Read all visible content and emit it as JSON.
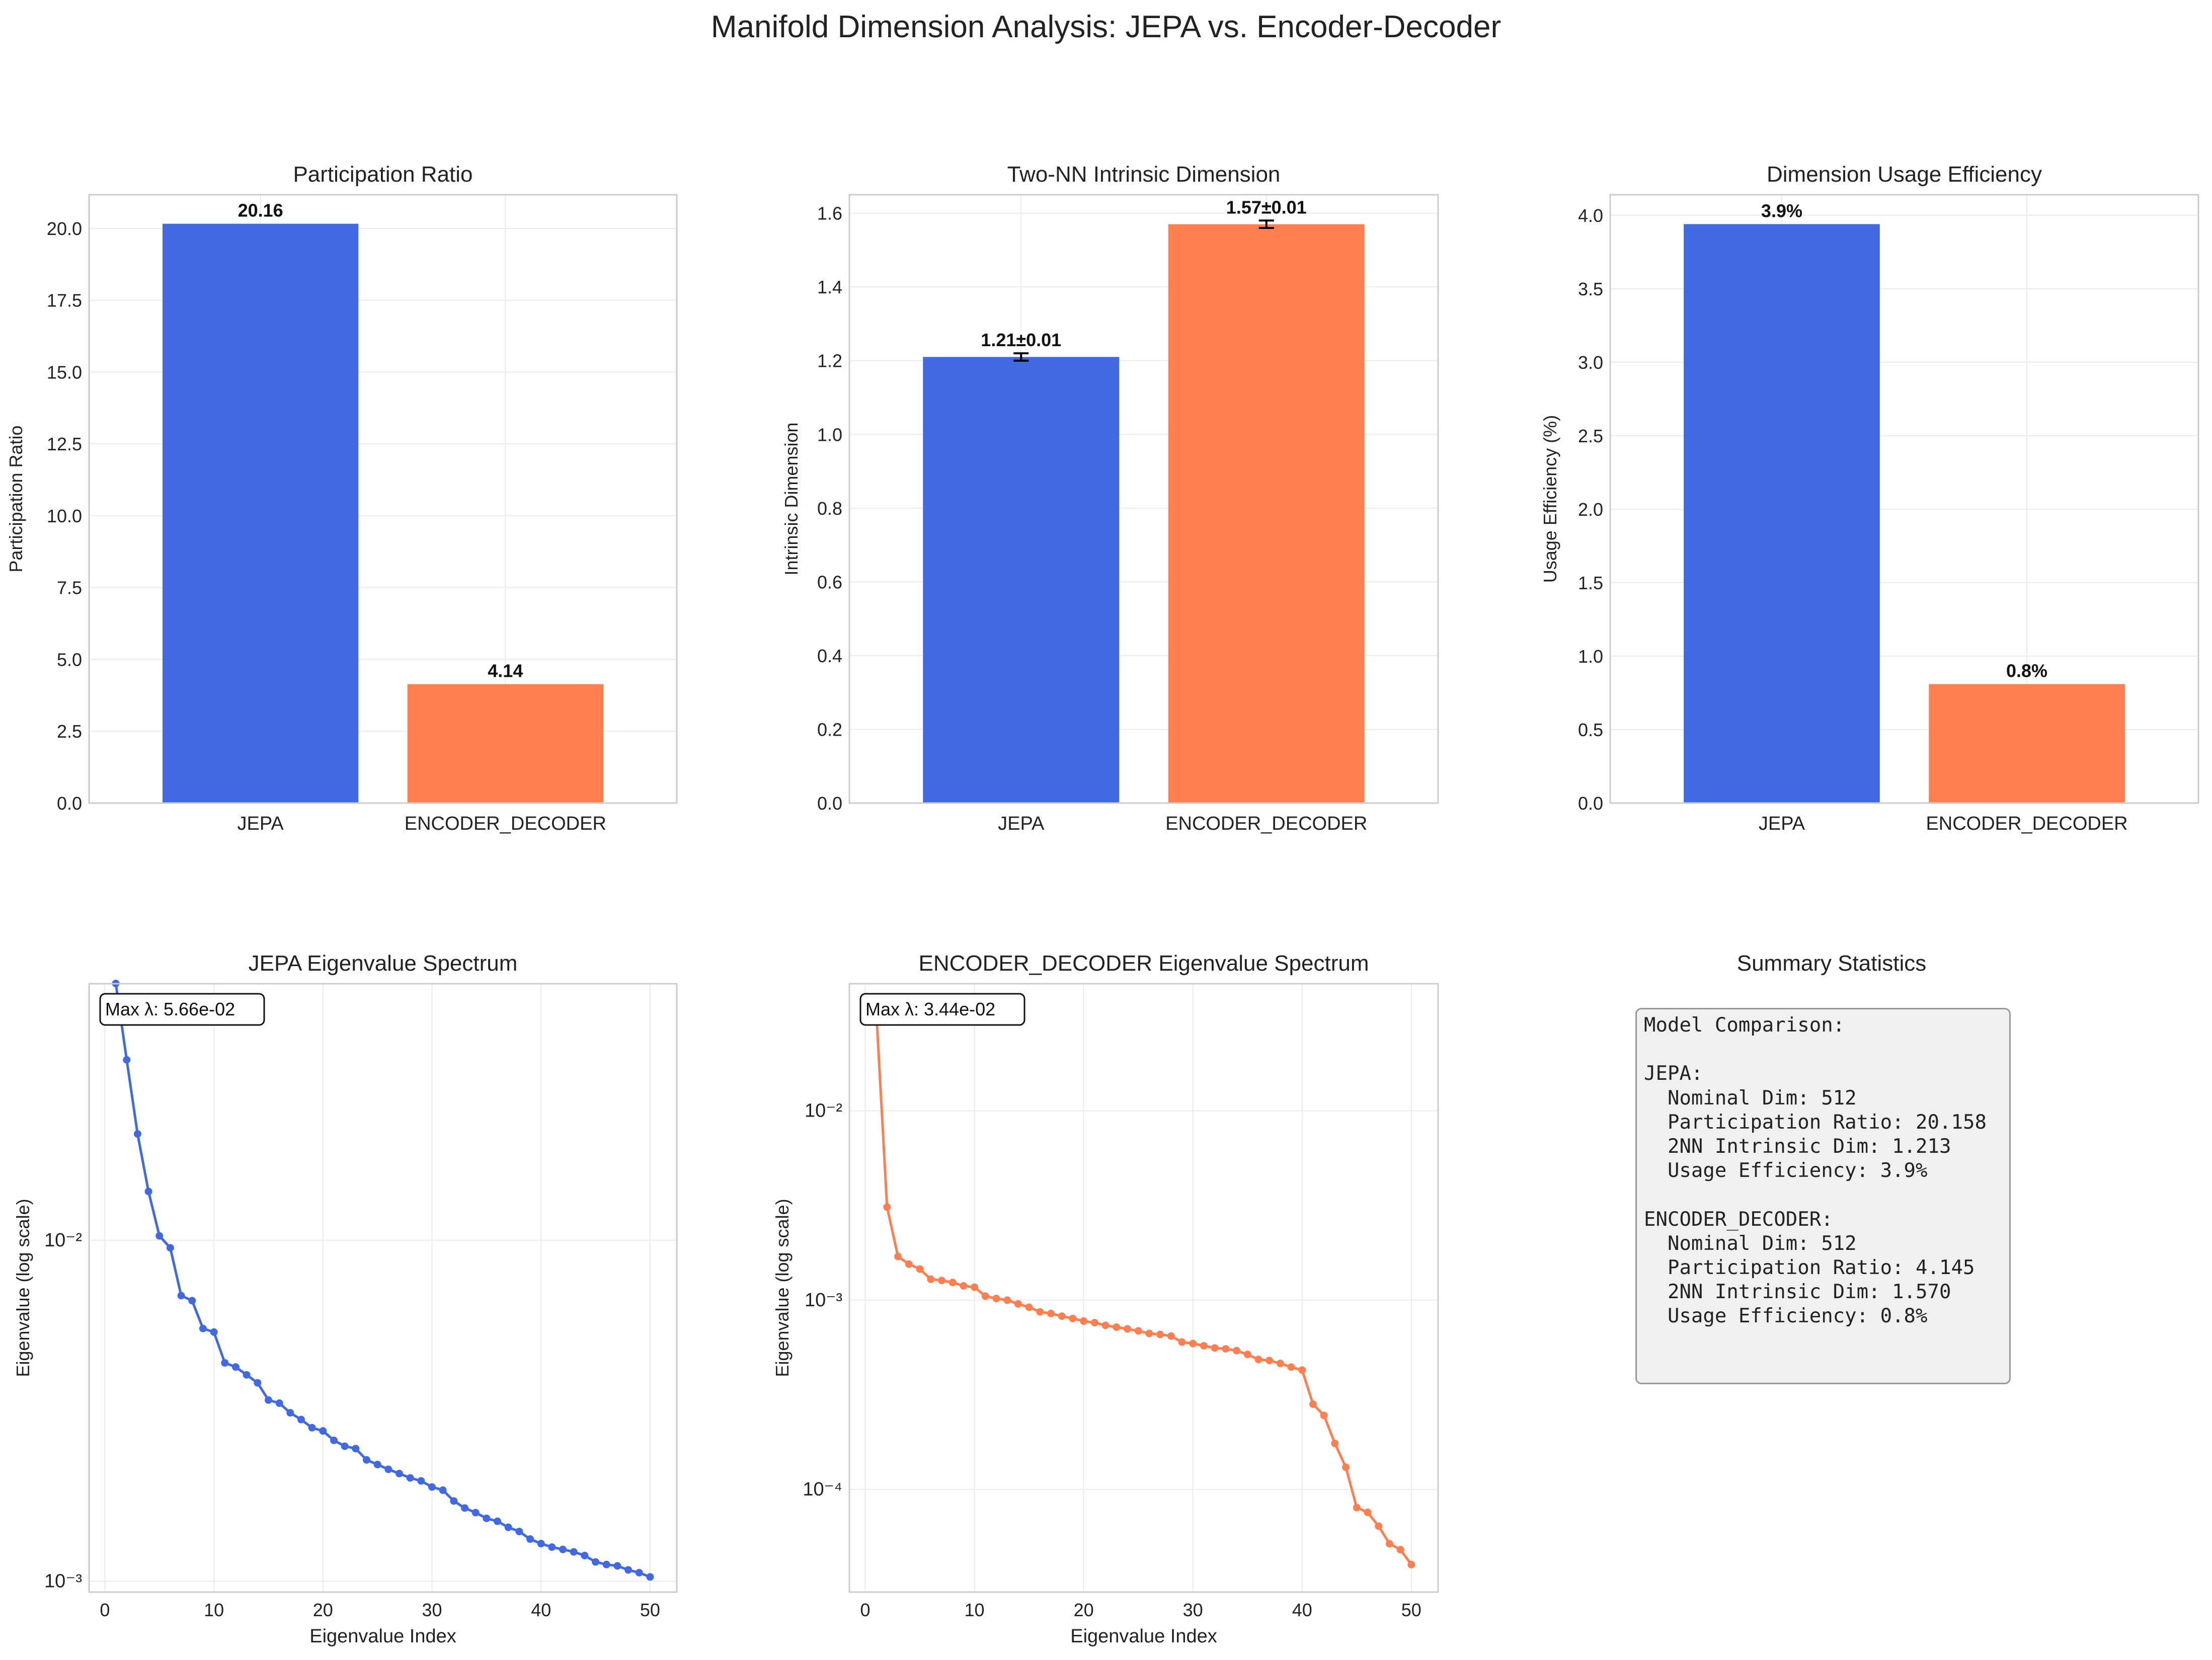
{
  "title": "Manifold Dimension Analysis: JEPA vs. Encoder-Decoder",
  "colors": {
    "jepa": "#4169E1",
    "encoder_decoder": "#FF7F50"
  },
  "chart_data": [
    {
      "type": "bar",
      "title": "Participation Ratio",
      "ylabel": "Participation Ratio",
      "categories": [
        "JEPA",
        "ENCODER_DECODER"
      ],
      "values": [
        20.16,
        4.14
      ],
      "value_labels": [
        "20.16",
        "4.14"
      ],
      "ylim": [
        0,
        21.17
      ],
      "yticks": [
        0,
        2.5,
        5,
        7.5,
        10,
        12.5,
        15,
        17.5,
        20
      ],
      "ytick_labels": [
        "0.0",
        "2.5",
        "5.0",
        "7.5",
        "10.0",
        "12.5",
        "15.0",
        "17.5",
        "20.0"
      ],
      "grid": true
    },
    {
      "type": "bar",
      "title": "Two-NN Intrinsic Dimension",
      "ylabel": "Intrinsic Dimension",
      "categories": [
        "JEPA",
        "ENCODER_DECODER"
      ],
      "values": [
        1.21,
        1.57
      ],
      "errors": [
        0.01,
        0.01
      ],
      "value_labels": [
        "1.21±0.01",
        "1.57±0.01"
      ],
      "ylim": [
        0,
        1.65
      ],
      "yticks": [
        0,
        0.2,
        0.4,
        0.6,
        0.8,
        1.0,
        1.2,
        1.4,
        1.6
      ],
      "ytick_labels": [
        "0.0",
        "0.2",
        "0.4",
        "0.6",
        "0.8",
        "1.0",
        "1.2",
        "1.4",
        "1.6"
      ],
      "grid": true
    },
    {
      "type": "bar",
      "title": "Dimension Usage Efficiency",
      "ylabel": "Usage Efficiency (%)",
      "categories": [
        "JEPA",
        "ENCODER_DECODER"
      ],
      "values": [
        3.94,
        0.81
      ],
      "value_labels": [
        "3.9%",
        "0.8%"
      ],
      "ylim": [
        0,
        4.14
      ],
      "yticks": [
        0,
        0.5,
        1.0,
        1.5,
        2.0,
        2.5,
        3.0,
        3.5,
        4.0
      ],
      "ytick_labels": [
        "0.0",
        "0.5",
        "1.0",
        "1.5",
        "2.0",
        "2.5",
        "3.0",
        "3.5",
        "4.0"
      ],
      "grid": true
    },
    {
      "type": "line",
      "title": "JEPA Eigenvalue Spectrum",
      "xlabel": "Eigenvalue Index",
      "ylabel": "Eigenvalue (log scale)",
      "yscale": "log",
      "annotation": "Max λ: 5.66e-02",
      "x": [
        1,
        2,
        3,
        4,
        5,
        6,
        7,
        8,
        9,
        10,
        11,
        12,
        13,
        14,
        15,
        16,
        17,
        18,
        19,
        20,
        21,
        22,
        23,
        24,
        25,
        26,
        27,
        28,
        29,
        30,
        31,
        32,
        33,
        34,
        35,
        36,
        37,
        38,
        39,
        40,
        41,
        42,
        43,
        44,
        45,
        46,
        47,
        48,
        49,
        50
      ],
      "y": [
        0.0566,
        0.0338,
        0.0205,
        0.0139,
        0.0103,
        0.0095,
        0.00688,
        0.00665,
        0.00551,
        0.00538,
        0.00437,
        0.00425,
        0.00403,
        0.00382,
        0.0034,
        0.00333,
        0.00312,
        0.00298,
        0.00282,
        0.00276,
        0.00259,
        0.00249,
        0.00245,
        0.00227,
        0.0022,
        0.00213,
        0.00207,
        0.00201,
        0.00197,
        0.00189,
        0.00185,
        0.00172,
        0.00164,
        0.00159,
        0.00153,
        0.0015,
        0.00144,
        0.0014,
        0.00133,
        0.00129,
        0.00126,
        0.00124,
        0.00122,
        0.00119,
        0.00114,
        0.00112,
        0.00111,
        0.00108,
        0.00106,
        0.00103
      ],
      "xlim": [
        -1.45,
        52.45
      ],
      "ylim": [
        0.00093,
        0.0565
      ],
      "xticks": [
        0,
        10,
        20,
        30,
        40,
        50
      ],
      "ytick_labels": [
        "10⁻³",
        "10⁻²"
      ],
      "grid": true
    },
    {
      "type": "line",
      "title": "ENCODER_DECODER Eigenvalue Spectrum",
      "xlabel": "Eigenvalue Index",
      "ylabel": "Eigenvalue (log scale)",
      "yscale": "log",
      "annotation": "Max λ: 3.44e-02",
      "x": [
        1,
        2,
        3,
        4,
        5,
        6,
        7,
        8,
        9,
        10,
        11,
        12,
        13,
        14,
        15,
        16,
        17,
        18,
        19,
        20,
        21,
        22,
        23,
        24,
        25,
        26,
        27,
        28,
        29,
        30,
        31,
        32,
        33,
        34,
        35,
        36,
        37,
        38,
        39,
        40,
        41,
        42,
        43,
        44,
        45,
        46,
        47,
        48,
        49,
        50
      ],
      "y": [
        0.0344,
        0.0031,
        0.0017,
        0.00155,
        0.00146,
        0.00129,
        0.00127,
        0.00124,
        0.00119,
        0.00117,
        0.00105,
        0.00102,
        0.001,
        0.000955,
        0.000917,
        0.000867,
        0.00085,
        0.000823,
        0.0008,
        0.000775,
        0.00076,
        0.000736,
        0.00072,
        0.000705,
        0.000688,
        0.000667,
        0.000659,
        0.000646,
        0.0006,
        0.00059,
        0.000574,
        0.000559,
        0.000553,
        0.000541,
        0.000517,
        0.000486,
        0.00048,
        0.000463,
        0.000443,
        0.000427,
        0.000282,
        0.000246,
        0.000175,
        0.000131,
        8.02e-05,
        7.57e-05,
        6.4e-05,
        5.17e-05,
        4.81e-05,
        4.01e-05
      ],
      "xlim": [
        -1.45,
        52.45
      ],
      "ylim": [
        2.87e-05,
        0.0469
      ],
      "xticks": [
        0,
        10,
        20,
        30,
        40,
        50
      ],
      "ytick_labels": [
        "10⁻⁴",
        "10⁻³",
        "10⁻²"
      ],
      "grid": true
    }
  ],
  "summary": {
    "title": "Summary Statistics",
    "text": "Model Comparison:\n\nJEPA:\n  Nominal Dim: 512\n  Participation Ratio: 20.158\n  2NN Intrinsic Dim: 1.213\n  Usage Efficiency: 3.9%\n\nENCODER_DECODER:\n  Nominal Dim: 512\n  Participation Ratio: 4.145\n  2NN Intrinsic Dim: 1.570\n  Usage Efficiency: 0.8%"
  }
}
